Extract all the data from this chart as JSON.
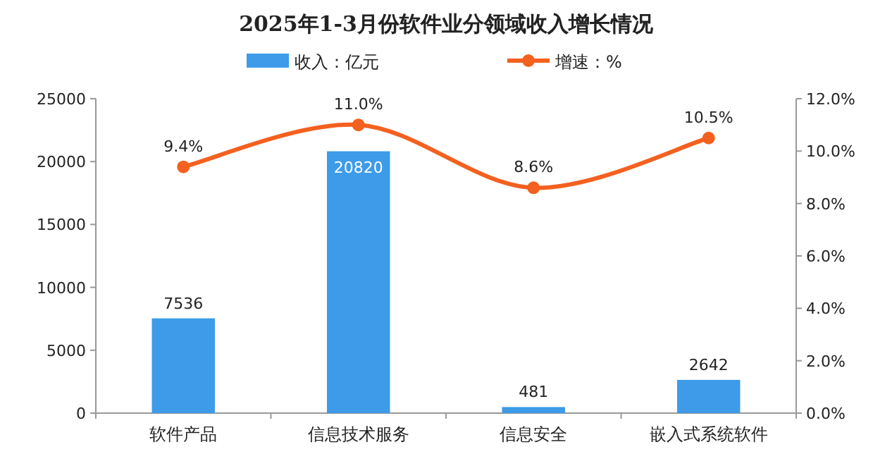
{
  "chart_data": {
    "type": "bar",
    "title": "2025年1-3月份软件业分领域收入增长情况",
    "categories": [
      "软件产品",
      "信息技术服务",
      "信息安全",
      "嵌入式系统软件"
    ],
    "series": [
      {
        "name": "收入：亿元",
        "color": "#3d9be9",
        "values": [
          7536,
          20820,
          481,
          2642
        ],
        "value_labels": [
          "7536",
          "20820",
          "481",
          "2642"
        ]
      },
      {
        "name": "增速：%",
        "type": "line",
        "axis": "y2",
        "color": "#f4601f",
        "marker": "circle",
        "values": [
          9.4,
          11.0,
          8.6,
          10.5
        ],
        "value_labels": [
          "9.4%",
          "11.0%",
          "8.6%",
          "10.5%"
        ]
      }
    ],
    "ylim": [
      0,
      25000
    ],
    "yticks": [
      0,
      5000,
      10000,
      15000,
      20000,
      25000
    ],
    "y2lim": [
      0,
      12
    ],
    "y2ticks": [
      {
        "value": 0,
        "label": "0.0%"
      },
      {
        "value": 2,
        "label": "2.0%"
      },
      {
        "value": 4,
        "label": "4.0%"
      },
      {
        "value": 6,
        "label": "6.0%"
      },
      {
        "value": 8,
        "label": "8.0%"
      },
      {
        "value": 10,
        "label": "10.0%"
      },
      {
        "value": 12,
        "label": "12.0%"
      }
    ],
    "grid": false,
    "legend": "top"
  }
}
